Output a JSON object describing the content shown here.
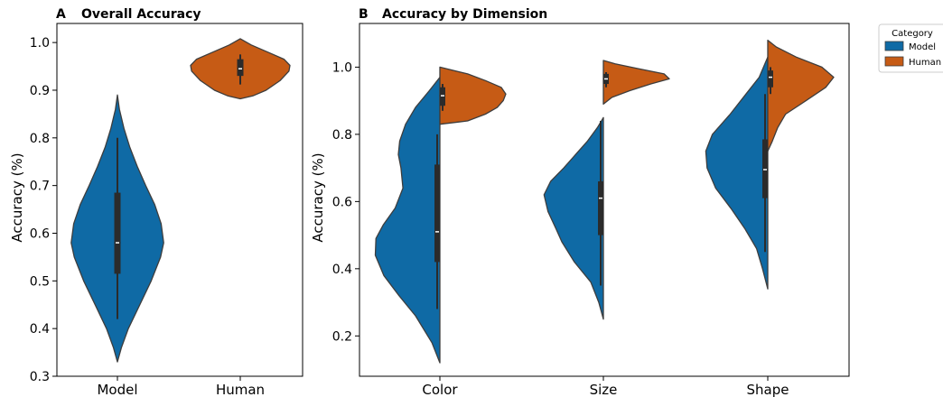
{
  "colors": {
    "Model": "#0f6aa5",
    "Human": "#c65b15",
    "edge": "#3d3d3d",
    "box": "#2b2b2b"
  },
  "legend": {
    "title": "Category",
    "items": [
      "Model",
      "Human"
    ]
  },
  "chart_data": [
    {
      "type": "violin",
      "panel_label": "A",
      "title": "Overall Accuracy",
      "xlabel": "",
      "ylabel": "Accuracy (%)",
      "ylim": [
        0.3,
        1.04
      ],
      "yticks": [
        "0.3",
        "0.4",
        "0.5",
        "0.6",
        "0.7",
        "0.8",
        "0.9",
        "1.0"
      ],
      "categories": [
        "Model",
        "Human"
      ],
      "split": false,
      "series": [
        {
          "category": "Model",
          "group": "Model",
          "range": [
            0.33,
            0.89
          ],
          "q1": 0.515,
          "median": 0.58,
          "q3": 0.685,
          "whisker": [
            0.42,
            0.8
          ],
          "density": [
            [
              0.33,
              0
            ],
            [
              0.36,
              0.08
            ],
            [
              0.4,
              0.22
            ],
            [
              0.45,
              0.45
            ],
            [
              0.5,
              0.68
            ],
            [
              0.55,
              0.87
            ],
            [
              0.58,
              0.93
            ],
            [
              0.62,
              0.88
            ],
            [
              0.66,
              0.75
            ],
            [
              0.7,
              0.57
            ],
            [
              0.74,
              0.4
            ],
            [
              0.78,
              0.25
            ],
            [
              0.82,
              0.13
            ],
            [
              0.86,
              0.04
            ],
            [
              0.89,
              0
            ]
          ]
        },
        {
          "category": "Human",
          "group": "Human",
          "range": [
            0.882,
            1.008
          ],
          "q1": 0.93,
          "median": 0.945,
          "q3": 0.965,
          "whisker": [
            0.912,
            0.975
          ],
          "density": [
            [
              0.882,
              0
            ],
            [
              0.888,
              0.25
            ],
            [
              0.9,
              0.52
            ],
            [
              0.92,
              0.8
            ],
            [
              0.94,
              0.98
            ],
            [
              0.952,
              1.0
            ],
            [
              0.965,
              0.88
            ],
            [
              0.98,
              0.55
            ],
            [
              0.995,
              0.22
            ],
            [
              1.008,
              0
            ]
          ]
        }
      ]
    },
    {
      "type": "violin",
      "panel_label": "B",
      "title": "Accuracy by Dimension",
      "xlabel": "",
      "ylabel": "Accuracy (%)",
      "ylim": [
        0.08,
        1.13
      ],
      "yticks": [
        "0.2",
        "0.4",
        "0.6",
        "0.8",
        "1.0"
      ],
      "categories": [
        "Color",
        "Size",
        "Shape"
      ],
      "split": true,
      "series": [
        {
          "category": "Color",
          "group": "Model",
          "range": [
            0.12,
            0.97
          ],
          "q1": 0.42,
          "median": 0.51,
          "q3": 0.71,
          "whisker": [
            0.28,
            0.8
          ],
          "density": [
            [
              0.12,
              0
            ],
            [
              0.18,
              0.12
            ],
            [
              0.26,
              0.37
            ],
            [
              0.32,
              0.62
            ],
            [
              0.38,
              0.85
            ],
            [
              0.44,
              0.98
            ],
            [
              0.49,
              0.97
            ],
            [
              0.53,
              0.86
            ],
            [
              0.58,
              0.68
            ],
            [
              0.64,
              0.56
            ],
            [
              0.7,
              0.59
            ],
            [
              0.74,
              0.63
            ],
            [
              0.78,
              0.61
            ],
            [
              0.83,
              0.52
            ],
            [
              0.88,
              0.37
            ],
            [
              0.93,
              0.16
            ],
            [
              0.97,
              0
            ]
          ]
        },
        {
          "category": "Color",
          "group": "Human",
          "range": [
            0.83,
            1.0
          ],
          "q1": 0.885,
          "median": 0.915,
          "q3": 0.94,
          "whisker": [
            0.87,
            0.95
          ],
          "density": [
            [
              0.83,
              0
            ],
            [
              0.84,
              0.42
            ],
            [
              0.86,
              0.69
            ],
            [
              0.88,
              0.87
            ],
            [
              0.9,
              0.96
            ],
            [
              0.92,
              1.0
            ],
            [
              0.94,
              0.93
            ],
            [
              0.96,
              0.69
            ],
            [
              0.98,
              0.42
            ],
            [
              1.0,
              0
            ]
          ]
        },
        {
          "category": "Size",
          "group": "Model",
          "range": [
            0.25,
            0.85
          ],
          "q1": 0.5,
          "median": 0.61,
          "q3": 0.66,
          "whisker": [
            0.35,
            0.84
          ],
          "density": [
            [
              0.25,
              0
            ],
            [
              0.3,
              0.07
            ],
            [
              0.36,
              0.19
            ],
            [
              0.42,
              0.44
            ],
            [
              0.48,
              0.63
            ],
            [
              0.52,
              0.72
            ],
            [
              0.57,
              0.84
            ],
            [
              0.62,
              0.9
            ],
            [
              0.66,
              0.8
            ],
            [
              0.7,
              0.6
            ],
            [
              0.74,
              0.42
            ],
            [
              0.78,
              0.24
            ],
            [
              0.82,
              0.09
            ],
            [
              0.85,
              0
            ]
          ]
        },
        {
          "category": "Size",
          "group": "Human",
          "range": [
            0.89,
            1.02
          ],
          "q1": 0.95,
          "median": 0.965,
          "q3": 0.98,
          "whisker": [
            0.94,
            0.985
          ],
          "density": [
            [
              0.89,
              0
            ],
            [
              0.91,
              0.13
            ],
            [
              0.93,
              0.4
            ],
            [
              0.95,
              0.72
            ],
            [
              0.965,
              1.0
            ],
            [
              0.98,
              0.92
            ],
            [
              0.995,
              0.54
            ],
            [
              1.01,
              0.18
            ],
            [
              1.02,
              0
            ]
          ]
        },
        {
          "category": "Shape",
          "group": "Model",
          "range": [
            0.34,
            1.03
          ],
          "q1": 0.61,
          "median": 0.695,
          "q3": 0.785,
          "whisker": [
            0.45,
            0.92
          ],
          "density": [
            [
              0.34,
              0
            ],
            [
              0.4,
              0.08
            ],
            [
              0.46,
              0.17
            ],
            [
              0.52,
              0.35
            ],
            [
              0.58,
              0.56
            ],
            [
              0.64,
              0.79
            ],
            [
              0.7,
              0.92
            ],
            [
              0.75,
              0.94
            ],
            [
              0.8,
              0.84
            ],
            [
              0.86,
              0.57
            ],
            [
              0.92,
              0.33
            ],
            [
              0.97,
              0.13
            ],
            [
              1.03,
              0
            ]
          ]
        },
        {
          "category": "Shape",
          "group": "Human",
          "range": [
            0.75,
            1.08
          ],
          "q1": 0.94,
          "median": 0.97,
          "q3": 0.99,
          "whisker": [
            0.92,
            1.0
          ],
          "density": [
            [
              0.75,
              0
            ],
            [
              0.78,
              0.07
            ],
            [
              0.82,
              0.15
            ],
            [
              0.86,
              0.27
            ],
            [
              0.9,
              0.58
            ],
            [
              0.94,
              0.88
            ],
            [
              0.97,
              1.0
            ],
            [
              1.0,
              0.82
            ],
            [
              1.03,
              0.43
            ],
            [
              1.06,
              0.13
            ],
            [
              1.08,
              0
            ]
          ]
        }
      ]
    }
  ]
}
